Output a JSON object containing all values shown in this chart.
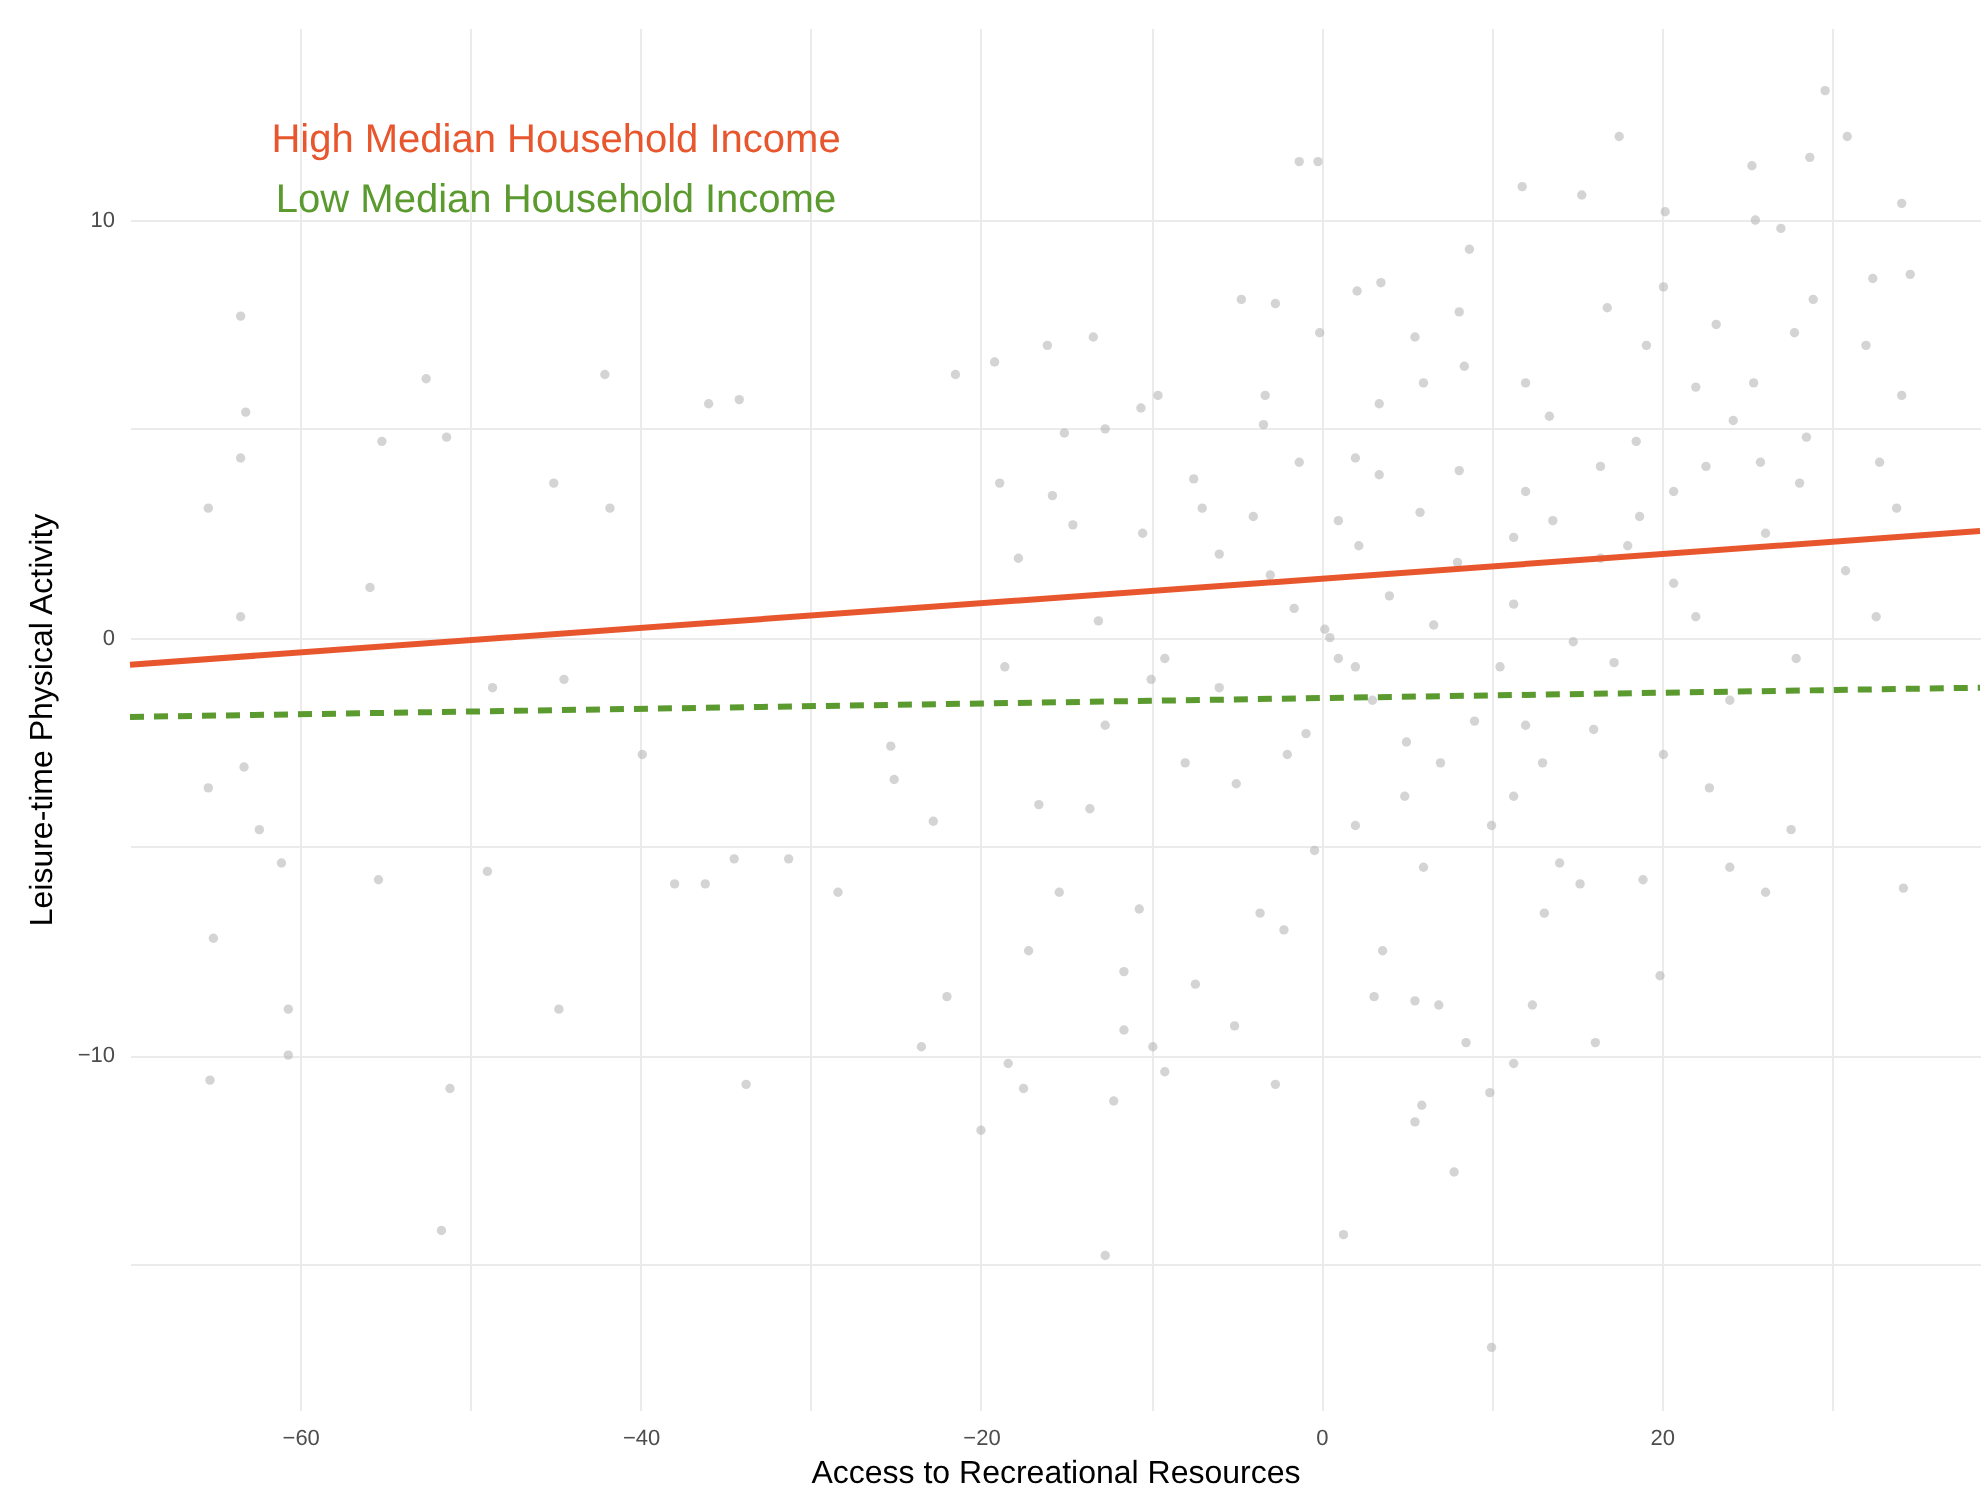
{
  "chart_data": {
    "type": "scatter",
    "xlabel": "Access to Recreational Resources",
    "ylabel": "Leisure-time Physical Activity",
    "xlim": [
      -70,
      38.7
    ],
    "ylim": [
      -18.5,
      14.6
    ],
    "xticks": [
      -60,
      {
        "value": -50,
        "label": null
      },
      -40,
      {
        "value": -30,
        "label": null
      },
      -20,
      {
        "value": -10,
        "label": null
      },
      0,
      {
        "value": 10,
        "label": null
      },
      20,
      {
        "value": 30,
        "label": null
      }
    ],
    "yticks": [
      {
        "value": -15,
        "label": null
      },
      -10,
      {
        "value": -5,
        "label": null
      },
      0,
      {
        "value": 5,
        "label": null
      },
      10
    ],
    "grid": true,
    "legend": "top left",
    "series": [
      {
        "color": "#b0b0b0",
        "marker": "circle",
        "x": [
          -63.5,
          -63.2,
          -63.5,
          -65.4,
          -52.6,
          -51.4,
          -55.2,
          -42.1,
          -36,
          -41.8,
          -45.1,
          -55.9,
          -63.5,
          -48.7,
          -44.5,
          -21.5,
          -34.2,
          -65.4,
          -63.3,
          -62.4,
          -61.1,
          -65.1,
          -60.7,
          -60.7,
          -65.3,
          -51.2,
          -51.7,
          -44.8,
          -55.4,
          -49,
          -33.8,
          -39.9,
          -38,
          -36.2,
          -34.5,
          -31.3,
          -28.4,
          -25.1,
          -22,
          -23.5,
          -20,
          -25.3,
          -22.8,
          29.6,
          17.5,
          30.9,
          -1.3,
          -0.2,
          25.3,
          28.7,
          11.8,
          15.3,
          34.1,
          20.2,
          25.5,
          8.7,
          32.4,
          34.6,
          20.1,
          2.1,
          3.5,
          -4.7,
          -2.7,
          8.1,
          16.8,
          28.9,
          -13.4,
          -16.1,
          -19.2,
          23.2,
          27.8,
          19.1,
          5.5,
          32,
          -0.1,
          8.4,
          25.4,
          12,
          34.1,
          -3.3,
          -9.6,
          3.4,
          13.4,
          -10.6,
          24.2,
          -3.4,
          -15.1,
          -12.7,
          28.5,
          18.5,
          2,
          -1.3,
          32.8,
          22.6,
          25.8,
          8.1,
          16.4,
          -18.9,
          -7.5,
          3.4,
          20.7,
          28.1,
          -15.8,
          -4,
          5.8,
          13.6,
          18.7,
          33.8,
          -10.5,
          -14.6,
          2.2,
          26.1,
          -6,
          11.3,
          -17.8,
          16.4,
          20.7,
          30.8,
          -1.6,
          11.3,
          22,
          6.6,
          -13.1,
          0.2,
          14.8,
          32.6,
          -9.2,
          27.9,
          2,
          17.2,
          -18.6,
          -6,
          10.5,
          -12.7,
          12,
          -0.9,
          -16.6,
          -13.6,
          -0.4,
          4.9,
          11.3,
          -15.4,
          -10.7,
          -3.6,
          -17.2,
          -11.6,
          -7.4,
          -2.2,
          3.6,
          5.5,
          3.1,
          6.9,
          12.4,
          13.1,
          19.9,
          24,
          26.1,
          34.2,
          27.6,
          -11.6,
          -5.1,
          8.5,
          16.1,
          -18.4,
          -17.5,
          -12.2,
          -2.7,
          11.3,
          9.9,
          5.5,
          5.9,
          7.8,
          1.3,
          -12.7,
          10,
          -9.9,
          -9.2,
          20.1,
          22.8,
          14,
          15.2,
          18.9,
          0.5,
          1,
          3,
          5,
          7,
          -2,
          9,
          13,
          -5,
          2,
          6,
          10,
          -8,
          -10,
          16,
          24,
          4,
          8,
          -3,
          12,
          18,
          22,
          27,
          6,
          -7,
          1
        ],
        "values": [
          7.7,
          5.4,
          4.3,
          3.1,
          6.2,
          4.8,
          4.7,
          6.3,
          5.6,
          3.1,
          3.7,
          1.2,
          0.5,
          -1.2,
          -1,
          6.3,
          5.7,
          -3.6,
          -3.1,
          -4.6,
          -5.4,
          -7.2,
          -8.9,
          -10,
          -10.6,
          -10.8,
          -14.2,
          -8.9,
          -5.8,
          -5.6,
          -10.7,
          -2.8,
          -5.9,
          -5.9,
          -5.3,
          -5.3,
          -6.1,
          -3.4,
          -8.6,
          -9.8,
          -11.8,
          -2.6,
          -4.4,
          13.1,
          12,
          12,
          11.4,
          11.4,
          11.3,
          11.5,
          10.8,
          10.6,
          10.4,
          10.2,
          10,
          9.3,
          8.6,
          8.7,
          8.4,
          8.3,
          8.5,
          8.1,
          8,
          7.8,
          7.9,
          8.1,
          7.2,
          7,
          6.6,
          7.5,
          7.3,
          7,
          7.2,
          7,
          7.3,
          6.5,
          6.1,
          6.1,
          5.8,
          5.8,
          5.8,
          5.6,
          5.3,
          5.5,
          5.2,
          5.1,
          4.9,
          5,
          4.8,
          4.7,
          4.3,
          4.2,
          4.2,
          4.1,
          4.2,
          4,
          4.1,
          3.7,
          3.8,
          3.9,
          3.5,
          3.7,
          3.4,
          2.9,
          3,
          2.8,
          2.9,
          3.1,
          2.5,
          2.7,
          2.2,
          2.5,
          2,
          2.4,
          1.9,
          1.9,
          1.3,
          1.6,
          0.7,
          0.8,
          0.5,
          0.3,
          0.4,
          0.2,
          -0.1,
          0.5,
          -0.5,
          -0.5,
          -0.7,
          -0.6,
          -0.7,
          -1.2,
          -0.7,
          -2.1,
          -2.1,
          -2.3,
          -4,
          -4.1,
          -5.1,
          -3.8,
          -3.8,
          -6.1,
          -6.5,
          -6.6,
          -7.5,
          -8,
          -8.3,
          -7,
          -7.5,
          -8.7,
          -8.6,
          -8.8,
          -8.8,
          -6.6,
          -8.1,
          -5.5,
          -6.1,
          -6,
          -4.6,
          -9.4,
          -9.3,
          -9.7,
          -9.7,
          -10.2,
          -10.8,
          -11.1,
          -10.7,
          -10.2,
          -10.9,
          -11.6,
          -11.2,
          -12.8,
          -14.3,
          -14.8,
          -17,
          -9.8,
          -10.4,
          -2.8,
          -3.6,
          -5.4,
          -5.9,
          -5.8,
          0,
          -0.5,
          -1.5,
          -2.5,
          -3,
          -2.8,
          -2,
          -3,
          -3.5,
          -4.5,
          -5.5,
          -4.5,
          -3,
          -1,
          -2.2,
          -1.5,
          1,
          1.8,
          1.5,
          3.5,
          2.2,
          6,
          9.8,
          6.1,
          3.1,
          2.8
        ]
      },
      {
        "type": "line",
        "name": "High Median Household Income",
        "color": "#e8562e",
        "line_style": "solid",
        "x": [
          -70,
          38.7
        ],
        "values": [
          -0.65,
          2.55
        ]
      },
      {
        "type": "line",
        "name": "Low Median Household Income",
        "color": "#5b9a2e",
        "line_style": "dashed",
        "x": [
          -70,
          38.7
        ],
        "values": [
          -1.9,
          -1.2
        ]
      }
    ]
  }
}
